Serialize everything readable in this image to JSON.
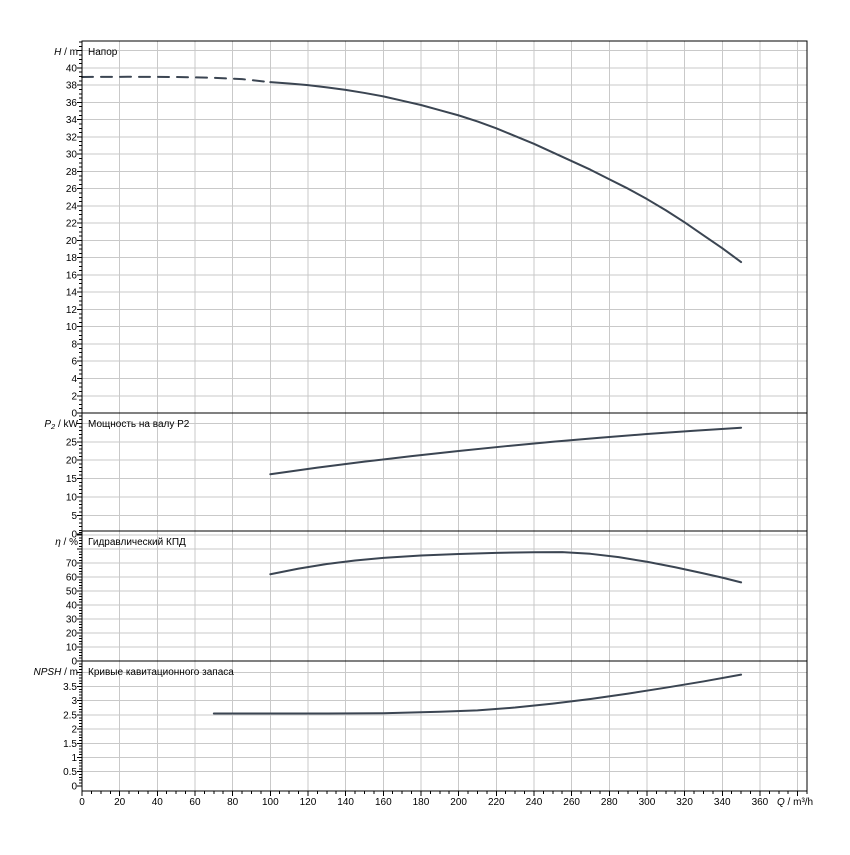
{
  "figure": {
    "background": "#ffffff",
    "curve_color": "#3b4552",
    "grid_color": "#c9c9c9",
    "axis_color": "#000000"
  },
  "chart_data": {
    "type": "line",
    "grid": "on",
    "x_axis": {
      "label_symbol": "Q",
      "label_unit": "m³/h",
      "min": 0,
      "max": 385,
      "major_step": 20,
      "minor_step": 5,
      "tick_labels": [
        "0",
        "20",
        "40",
        "60",
        "80",
        "100",
        "120",
        "140",
        "160",
        "180",
        "200",
        "220",
        "240",
        "260",
        "280",
        "300",
        "320",
        "340",
        "360"
      ]
    },
    "panels": [
      {
        "id": "head",
        "title": "Напор",
        "y_symbol": "H",
        "y_sub": "",
        "y_unit": "m",
        "y_min": 0,
        "y_max": 43.12,
        "y_major_step": 2,
        "y_minor_step": 0.5,
        "y_tick_labels": [
          "0",
          "2",
          "4",
          "6",
          "8",
          "10",
          "12",
          "14",
          "16",
          "18",
          "20",
          "22",
          "24",
          "26",
          "28",
          "30",
          "32",
          "34",
          "36",
          "38",
          "40"
        ],
        "series": [
          {
            "name": "head-curve-extrapolated",
            "line": "dashed",
            "points": [
              [
                0,
                38.95
              ],
              [
                25,
                38.97
              ],
              [
                50,
                38.95
              ],
              [
                70,
                38.85
              ],
              [
                85,
                38.7
              ],
              [
                100,
                38.35
              ]
            ]
          },
          {
            "name": "head-curve",
            "line": "solid",
            "points": [
              [
                100,
                38.35
              ],
              [
                110,
                38.2
              ],
              [
                120,
                38.0
              ],
              [
                130,
                37.75
              ],
              [
                140,
                37.45
              ],
              [
                150,
                37.1
              ],
              [
                160,
                36.7
              ],
              [
                170,
                36.2
              ],
              [
                180,
                35.7
              ],
              [
                190,
                35.1
              ],
              [
                200,
                34.5
              ],
              [
                210,
                33.8
              ],
              [
                220,
                33.0
              ],
              [
                230,
                32.1
              ],
              [
                240,
                31.2
              ],
              [
                250,
                30.2
              ],
              [
                260,
                29.2
              ],
              [
                270,
                28.2
              ],
              [
                280,
                27.1
              ],
              [
                290,
                26.0
              ],
              [
                300,
                24.8
              ],
              [
                310,
                23.5
              ],
              [
                320,
                22.1
              ],
              [
                330,
                20.6
              ],
              [
                340,
                19.1
              ],
              [
                350,
                17.5
              ]
            ]
          }
        ]
      },
      {
        "id": "shaft-power",
        "title": "Мощность на валу P2",
        "y_symbol": "P",
        "y_sub": "2",
        "y_unit": "kW",
        "y_min": 0.8,
        "y_max": 32.8,
        "y_major_step": 5,
        "y_minor_step": 1,
        "y_tick_labels": [
          "0",
          "5",
          "10",
          "15",
          "20",
          "25"
        ],
        "series": [
          {
            "name": "shaft-power-curve",
            "line": "solid",
            "points": [
              [
                100,
                16.2
              ],
              [
                125,
                18.0
              ],
              [
                150,
                19.6
              ],
              [
                175,
                21.1
              ],
              [
                200,
                22.5
              ],
              [
                225,
                23.8
              ],
              [
                250,
                25.0
              ],
              [
                275,
                26.1
              ],
              [
                300,
                27.1
              ],
              [
                325,
                28.0
              ],
              [
                350,
                28.8
              ]
            ]
          }
        ]
      },
      {
        "id": "efficiency",
        "title": "Гидравлический КПД",
        "y_symbol": "η",
        "y_sub": "",
        "y_unit": "%",
        "y_min": 0,
        "y_max": 92.9,
        "y_major_step": 10,
        "y_minor_step": 2,
        "y_tick_labels": [
          "0",
          "10",
          "20",
          "30",
          "40",
          "50",
          "60",
          "70"
        ],
        "series": [
          {
            "name": "efficiency-curve",
            "line": "solid",
            "points": [
              [
                100,
                62
              ],
              [
                115,
                66
              ],
              [
                130,
                69.3
              ],
              [
                145,
                71.8
              ],
              [
                160,
                73.7
              ],
              [
                180,
                75.4
              ],
              [
                200,
                76.5
              ],
              [
                220,
                77.3
              ],
              [
                240,
                77.7
              ],
              [
                255,
                77.8
              ],
              [
                270,
                76.6
              ],
              [
                285,
                74.2
              ],
              [
                300,
                70.9
              ],
              [
                315,
                67.0
              ],
              [
                330,
                62.6
              ],
              [
                340,
                59.6
              ],
              [
                350,
                56.2
              ]
            ]
          }
        ]
      },
      {
        "id": "npsh",
        "title": "Кривые кавитационного запаса",
        "y_symbol": "NPSH",
        "y_sub": "",
        "y_unit": "m",
        "y_min": -0.18,
        "y_max": 4.4,
        "y_major_step": 0.5,
        "y_minor_step": 0.1,
        "y_tick_labels": [
          "0",
          "0.5",
          "1",
          "1.5",
          "2",
          "2.5",
          "3",
          "3.5"
        ],
        "series": [
          {
            "name": "npsh-curve",
            "line": "solid",
            "points": [
              [
                70,
                2.55
              ],
              [
                100,
                2.55
              ],
              [
                130,
                2.55
              ],
              [
                160,
                2.56
              ],
              [
                190,
                2.61
              ],
              [
                210,
                2.66
              ],
              [
                230,
                2.76
              ],
              [
                250,
                2.9
              ],
              [
                270,
                3.06
              ],
              [
                290,
                3.25
              ],
              [
                310,
                3.46
              ],
              [
                330,
                3.68
              ],
              [
                350,
                3.92
              ]
            ]
          }
        ]
      }
    ]
  }
}
